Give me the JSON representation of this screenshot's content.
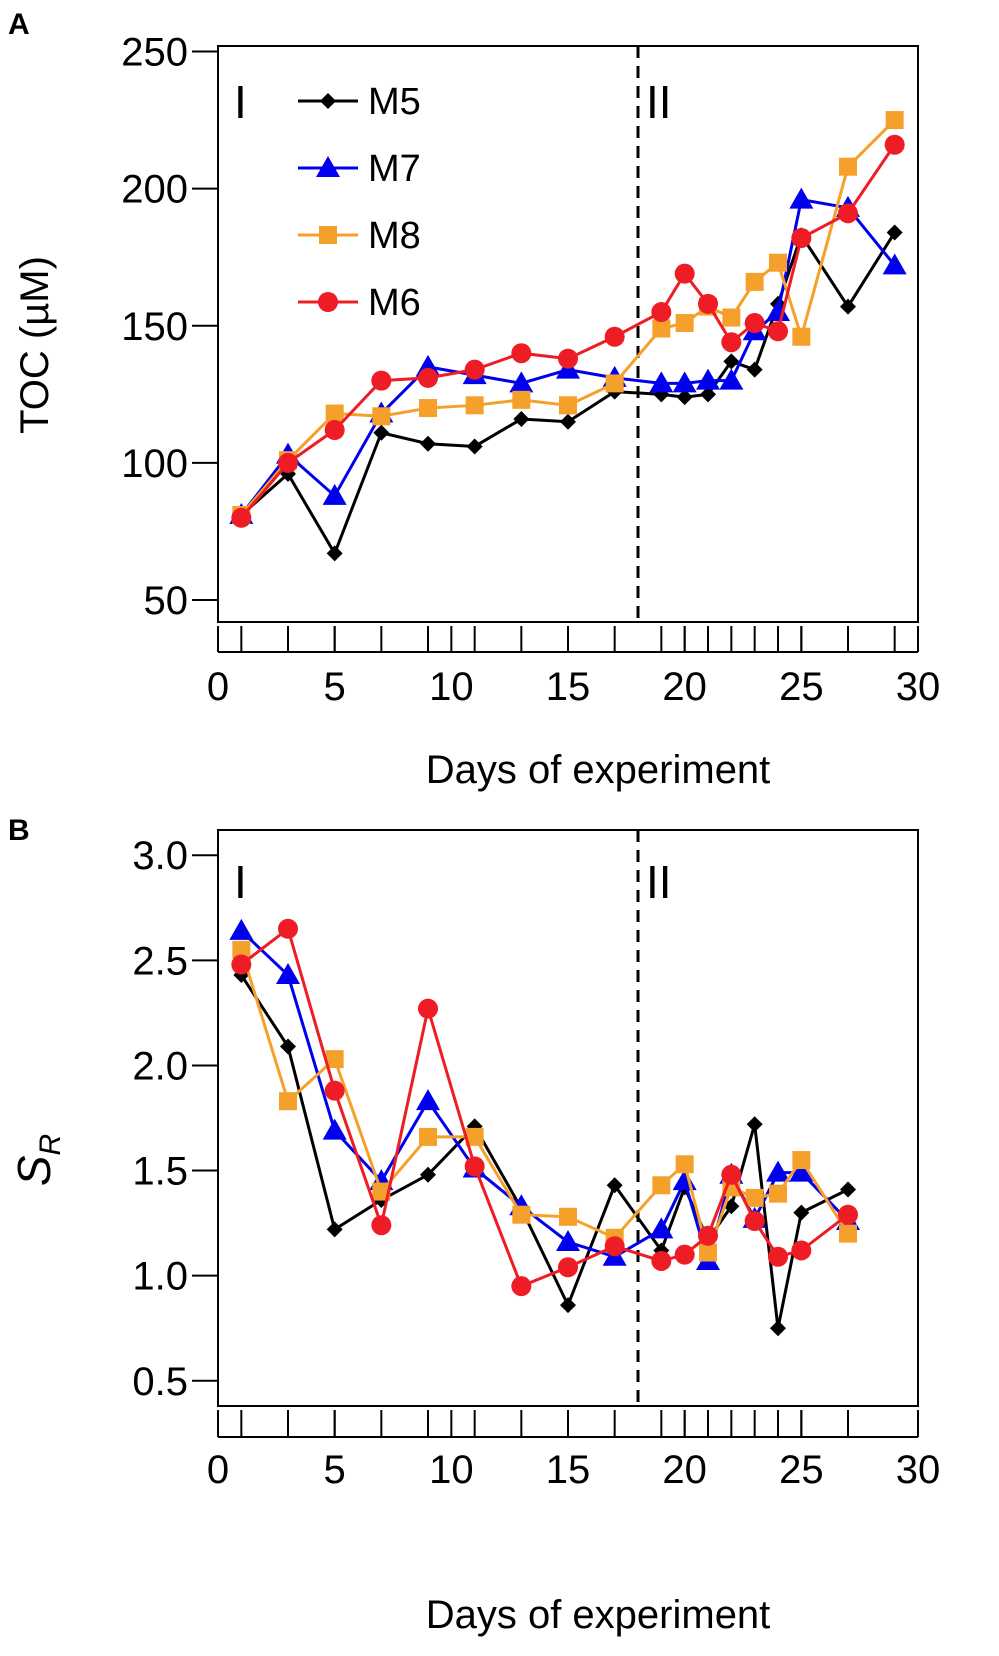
{
  "colors": {
    "M5": "#000000",
    "M7": "#0000ee",
    "M8": "#f5a02a",
    "M6": "#ee1c24"
  },
  "legend": [
    "M5",
    "M7",
    "M8",
    "M6"
  ],
  "chart_data": [
    {
      "type": "line",
      "panel": "A",
      "xlabel": "Days of experiment",
      "ylabel": "TOC (µM)",
      "xlim": [
        0,
        30
      ],
      "ylim": [
        42,
        252
      ],
      "xticks": [
        0,
        5,
        10,
        15,
        20,
        25,
        30
      ],
      "xtick_labels": [
        "0",
        "5",
        "10",
        "15",
        "20",
        "25",
        "30"
      ],
      "minor_xticks": [
        1,
        3,
        5,
        7,
        9,
        11,
        13,
        15,
        17,
        19,
        20,
        21,
        22,
        23,
        24,
        25,
        27,
        29
      ],
      "yticks": [
        50,
        100,
        150,
        200,
        250
      ],
      "ytick_labels": [
        "50",
        "100",
        "150",
        "200",
        "250"
      ],
      "phase_divider_x": 18,
      "phase_labels": [
        "I",
        "II"
      ],
      "series": [
        {
          "name": "M5",
          "marker": "diamond",
          "x": [
            1,
            3,
            5,
            7,
            9,
            11,
            13,
            15,
            17,
            19,
            20,
            21,
            22,
            23,
            24,
            25,
            27,
            29
          ],
          "values": [
            81,
            96,
            67,
            111,
            107,
            106,
            116,
            115,
            126,
            125,
            124,
            125,
            137,
            134,
            158,
            183,
            157,
            184
          ]
        },
        {
          "name": "M7",
          "marker": "triangle",
          "x": [
            1,
            3,
            5,
            7,
            9,
            11,
            13,
            15,
            17,
            19,
            20,
            21,
            22,
            23,
            24,
            25,
            27,
            29
          ],
          "values": [
            81,
            103,
            88,
            118,
            135,
            132,
            129,
            134,
            131,
            129,
            129,
            130,
            130,
            148,
            155,
            196,
            193,
            172
          ]
        },
        {
          "name": "M8",
          "marker": "square",
          "x": [
            1,
            3,
            5,
            7,
            9,
            11,
            13,
            15,
            17,
            19,
            20,
            21,
            22,
            23,
            24,
            25,
            27,
            29
          ],
          "values": [
            81,
            101,
            118,
            117,
            120,
            121,
            123,
            121,
            129,
            149,
            151,
            157,
            153,
            166,
            173,
            146,
            208,
            225
          ]
        },
        {
          "name": "M6",
          "marker": "circle",
          "x": [
            1,
            3,
            5,
            7,
            9,
            11,
            13,
            15,
            17,
            19,
            20,
            21,
            22,
            23,
            24,
            25,
            27,
            29
          ],
          "values": [
            80,
            100,
            112,
            130,
            131,
            134,
            140,
            138,
            146,
            155,
            169,
            158,
            144,
            151,
            148,
            182,
            191,
            216
          ]
        }
      ]
    },
    {
      "type": "line",
      "panel": "B",
      "xlabel": "Days of experiment",
      "ylabel": "S_R",
      "ylabel_main": "S",
      "ylabel_sub": "R",
      "xlim": [
        0,
        30
      ],
      "ylim": [
        0.38,
        3.12
      ],
      "xticks": [
        0,
        5,
        10,
        15,
        20,
        25,
        30
      ],
      "xtick_labels": [
        "0",
        "5",
        "10",
        "15",
        "20",
        "25",
        "30"
      ],
      "minor_xticks": [
        1,
        3,
        5,
        7,
        9,
        11,
        13,
        15,
        17,
        19,
        20,
        21,
        22,
        23,
        24,
        25,
        27
      ],
      "yticks": [
        0.5,
        1.0,
        1.5,
        2.0,
        2.5,
        3.0
      ],
      "ytick_labels": [
        "0.5",
        "1.0",
        "1.5",
        "2.0",
        "2.5",
        "3.0"
      ],
      "phase_divider_x": 18,
      "phase_labels": [
        "I",
        "II"
      ],
      "series": [
        {
          "name": "M5",
          "marker": "diamond",
          "x": [
            1,
            3,
            5,
            7,
            9,
            11,
            13,
            15,
            17,
            19,
            20,
            21,
            22,
            23,
            24,
            25,
            27
          ],
          "values": [
            2.43,
            2.09,
            1.22,
            1.36,
            1.48,
            1.71,
            1.32,
            0.86,
            1.43,
            1.12,
            1.42,
            1.17,
            1.33,
            1.72,
            0.75,
            1.3,
            1.41
          ]
        },
        {
          "name": "M7",
          "marker": "triangle",
          "x": [
            1,
            3,
            5,
            7,
            9,
            11,
            13,
            15,
            17,
            19,
            20,
            21,
            22,
            23,
            24,
            25,
            27
          ],
          "values": [
            2.64,
            2.43,
            1.69,
            1.45,
            1.83,
            1.51,
            1.33,
            1.16,
            1.09,
            1.22,
            1.45,
            1.07,
            1.48,
            1.27,
            1.49,
            1.49,
            1.26
          ]
        },
        {
          "name": "M8",
          "marker": "square",
          "x": [
            1,
            3,
            5,
            7,
            9,
            11,
            13,
            15,
            17,
            19,
            20,
            21,
            22,
            23,
            24,
            25,
            27
          ],
          "values": [
            2.55,
            1.83,
            2.03,
            1.4,
            1.66,
            1.66,
            1.29,
            1.28,
            1.18,
            1.43,
            1.53,
            1.11,
            1.42,
            1.37,
            1.39,
            1.55,
            1.2
          ]
        },
        {
          "name": "M6",
          "marker": "circle",
          "x": [
            1,
            3,
            5,
            7,
            9,
            11,
            13,
            15,
            17,
            19,
            20,
            21,
            22,
            23,
            24,
            25,
            27
          ],
          "values": [
            2.48,
            2.65,
            1.88,
            1.24,
            2.27,
            1.52,
            0.95,
            1.04,
            1.14,
            1.07,
            1.1,
            1.19,
            1.48,
            1.26,
            1.09,
            1.12,
            1.29
          ]
        }
      ]
    }
  ]
}
